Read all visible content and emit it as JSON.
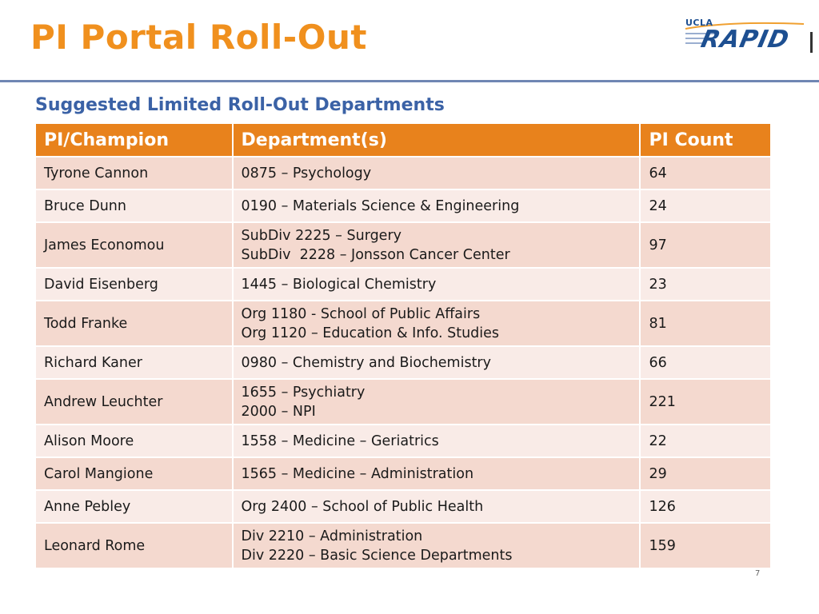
{
  "slide": {
    "title": "PI Portal Roll-Out",
    "subtitle": "Suggested Limited Roll-Out Departments",
    "logo": {
      "small_text": "UCLA",
      "main_text": "RAPID"
    },
    "page_number": "7"
  },
  "colors": {
    "title": "#f0901e",
    "header_bg": "#e8821c",
    "row_dark": "#f4d9cf",
    "row_light": "#f9ebe7",
    "subtitle": "#3b62a6",
    "rule": "#6f86b3"
  },
  "table": {
    "headers": [
      "PI/Champion",
      "Department(s)",
      "PI Count"
    ],
    "rows": [
      {
        "name": "Tyrone Cannon",
        "departments": [
          "0875 – Psychology"
        ],
        "count": "64"
      },
      {
        "name": "Bruce Dunn",
        "departments": [
          "0190 – Materials Science & Engineering"
        ],
        "count": "24"
      },
      {
        "name": "James Economou",
        "departments": [
          "SubDiv 2225 – Surgery",
          "SubDiv  2228 – Jonsson Cancer Center"
        ],
        "count": "97"
      },
      {
        "name": "David Eisenberg",
        "departments": [
          "1445 – Biological Chemistry"
        ],
        "count": "23"
      },
      {
        "name": "Todd Franke",
        "departments": [
          "Org 1180 - School of Public Affairs",
          "Org 1120 – Education & Info. Studies"
        ],
        "count": "81"
      },
      {
        "name": "Richard Kaner",
        "departments": [
          "0980 – Chemistry and Biochemistry"
        ],
        "count": "66"
      },
      {
        "name": "Andrew Leuchter",
        "departments": [
          "1655 – Psychiatry",
          "2000 – NPI"
        ],
        "count": "221"
      },
      {
        "name": "Alison Moore",
        "departments": [
          "1558 – Medicine – Geriatrics"
        ],
        "count": "22"
      },
      {
        "name": "Carol Mangione",
        "departments": [
          "1565 – Medicine – Administration"
        ],
        "count": "29"
      },
      {
        "name": "Anne Pebley",
        "departments": [
          "Org 2400 – School of Public Health"
        ],
        "count": "126"
      },
      {
        "name": "Leonard Rome",
        "departments": [
          "Div 2210 – Administration",
          "Div 2220 – Basic Science Departments"
        ],
        "count": "159"
      }
    ]
  }
}
